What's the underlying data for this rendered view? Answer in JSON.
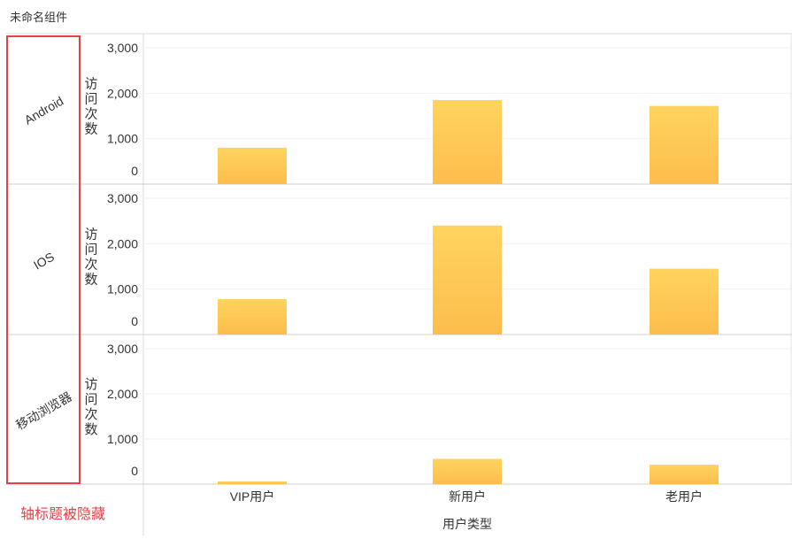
{
  "widget": {
    "title": "未命名组件"
  },
  "annotation": {
    "text": "轴标题被隐藏",
    "color": "#e8404a"
  },
  "chart_data": {
    "type": "bar",
    "categories": [
      "VIP用户",
      "新用户",
      "老用户"
    ],
    "xlabel": "用户类型",
    "ylabel": "访问次数",
    "ylim": [
      0,
      3000
    ],
    "yticks": [
      "0",
      "1,000",
      "2,000",
      "3,000"
    ],
    "grid": true,
    "bar_color_top": "#ffd45e",
    "bar_color_bottom": "#fdbd4c",
    "facets": [
      {
        "label": "Android",
        "values": [
          800,
          1850,
          1720
        ]
      },
      {
        "label": "IOS",
        "values": [
          780,
          2400,
          1450
        ]
      },
      {
        "label": "移动浏览器",
        "values": [
          60,
          560,
          430
        ]
      }
    ]
  }
}
